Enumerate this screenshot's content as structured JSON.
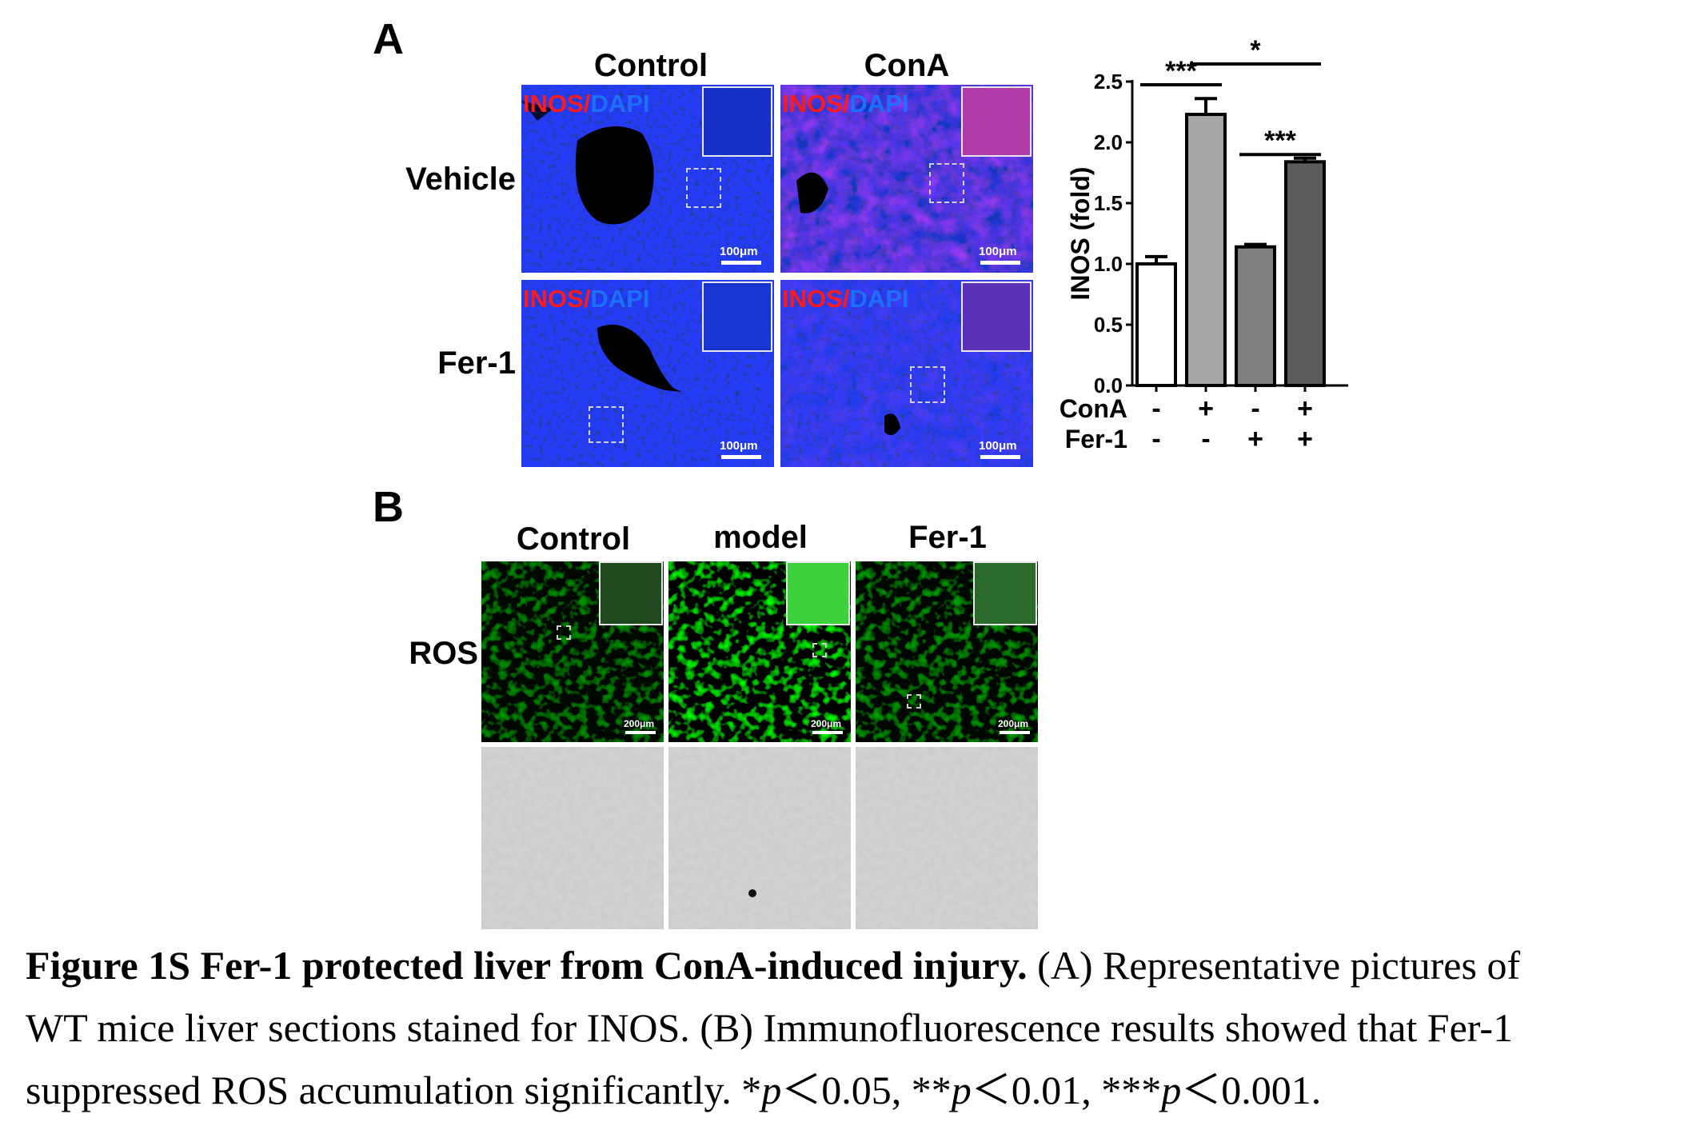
{
  "panel_a": {
    "letter": "A",
    "col_headers": [
      "Control",
      "ConA"
    ],
    "row_headers": [
      "Vehicle",
      "Fer-1"
    ],
    "stain_label": {
      "red": "INOS",
      "sep": "/",
      "blue": "DAPI"
    },
    "scale_label": "100μm"
  },
  "panel_b": {
    "letter": "B",
    "col_headers": [
      "Control",
      "model",
      "Fer-1"
    ],
    "row_header": "ROS",
    "scale_label": "200μm"
  },
  "chart_data": {
    "type": "bar",
    "categories": [
      "ConA- / Fer-1-",
      "ConA+ / Fer-1-",
      "ConA- / Fer-1+",
      "ConA+ / Fer-1+"
    ],
    "values": [
      1.0,
      2.23,
      1.14,
      1.84
    ],
    "errors": [
      0.06,
      0.13,
      0.02,
      0.03
    ],
    "bar_colors": [
      "#ffffff",
      "#a6a6a6",
      "#7f7f7f",
      "#5c5c5c"
    ],
    "ylabel": "INOS (fold)",
    "ylim": [
      0,
      2.5
    ],
    "yticks": [
      "0.0",
      "0.5",
      "1.0",
      "1.5",
      "2.0",
      "2.5"
    ],
    "ytick_values": [
      0.0,
      0.5,
      1.0,
      1.5,
      2.0,
      2.5
    ],
    "conditions": [
      {
        "name": "ConA",
        "values": [
          "-",
          "+",
          "-",
          "+"
        ]
      },
      {
        "name": "Fer-1",
        "values": [
          "-",
          "-",
          "+",
          "+"
        ]
      }
    ],
    "significance": [
      {
        "from": 0,
        "to": 1,
        "label": "***"
      },
      {
        "from": 1,
        "to": 3,
        "label": "*"
      },
      {
        "from": 2,
        "to": 3,
        "label": "***"
      }
    ]
  },
  "caption": {
    "title": "Figure 1S Fer-1 protected liver from ConA-induced injury.",
    "line1_rest": " (A) Representative pictures of",
    "line2": "WT mice liver sections stained for INOS. (B) Immunofluorescence results showed that Fer-1",
    "line3_a": "suppressed ROS accumulation significantly. *",
    "p": "p",
    "line3_b": "＜0.05, **",
    "line3_c": "＜0.01, ***",
    "line3_d": "＜0.001."
  }
}
